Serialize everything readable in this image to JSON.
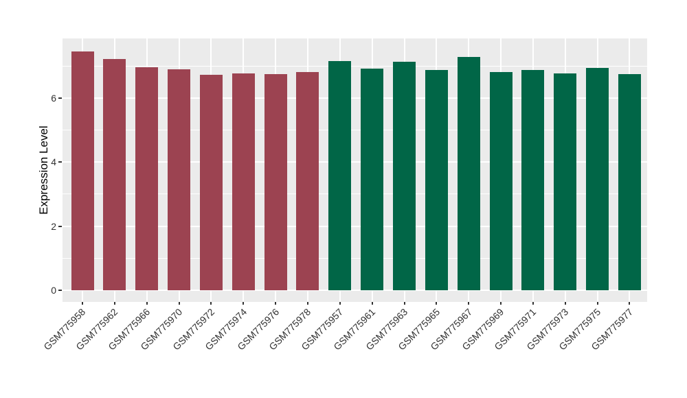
{
  "chart_data": {
    "type": "bar",
    "title": "",
    "xlabel": "",
    "ylabel": "Expression Level",
    "categories": [
      "GSM775958",
      "GSM775962",
      "GSM775966",
      "GSM775970",
      "GSM775972",
      "GSM775974",
      "GSM775976",
      "GSM775978",
      "GSM775957",
      "GSM775961",
      "GSM775963",
      "GSM775965",
      "GSM775967",
      "GSM775969",
      "GSM775971",
      "GSM775973",
      "GSM775975",
      "GSM775977"
    ],
    "values": [
      7.45,
      7.22,
      6.95,
      6.9,
      6.72,
      6.77,
      6.75,
      6.82,
      7.15,
      6.91,
      7.13,
      6.88,
      7.27,
      6.8,
      6.88,
      6.77,
      6.94,
      6.74
    ],
    "bar_colors": [
      "#9C4351",
      "#9C4351",
      "#9C4351",
      "#9C4351",
      "#9C4351",
      "#9C4351",
      "#9C4351",
      "#9C4351",
      "#016647",
      "#016647",
      "#016647",
      "#016647",
      "#016647",
      "#016647",
      "#016647",
      "#016647",
      "#016647",
      "#016647"
    ],
    "ylim": [
      0,
      7.86
    ],
    "yticks": [
      0,
      2,
      4,
      6
    ],
    "minor_gridlines_at": [
      1,
      3,
      5,
      7
    ],
    "grid": "on",
    "legend": "none",
    "x_tick_label_rotation_deg": 45,
    "panel_background": "#EBEBEB",
    "gridline_color": "#FFFFFF",
    "tick_mark_color": "#333333",
    "tick_label_color": "#303030",
    "axis_title_color": "#000000"
  }
}
